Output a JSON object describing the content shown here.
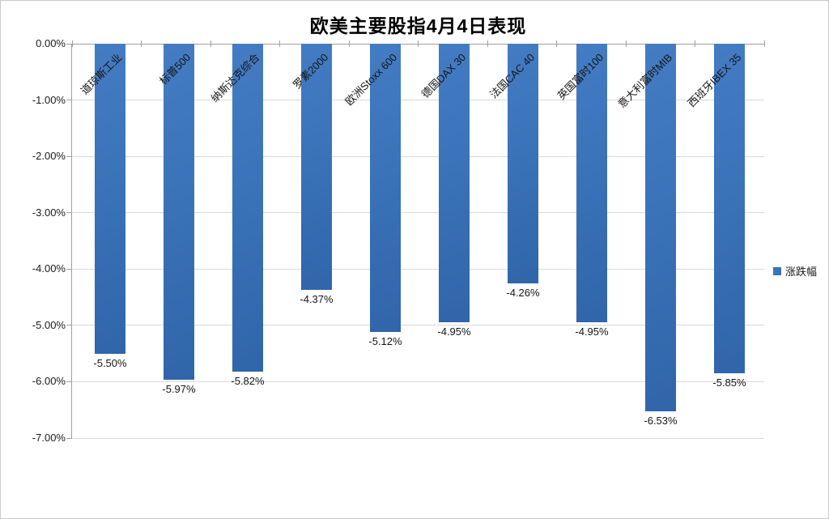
{
  "window": {
    "background": "#ffffff",
    "border_color": "#c9c9c9"
  },
  "chart_data": {
    "type": "bar",
    "title": "欧美主要股指4月4日表现",
    "categories": [
      "道琼斯工业",
      "标普500",
      "纳斯达克综合",
      "罗素2000",
      "欧洲Stoxx 600",
      "德国DAX 30",
      "法国CAC 40",
      "英国富时100",
      "意大利富时MIB",
      "西班牙IBEX 35"
    ],
    "series": [
      {
        "name": "涨跌幅",
        "values": [
          -5.5,
          -5.97,
          -5.82,
          -4.37,
          -5.12,
          -4.95,
          -4.26,
          -4.95,
          -6.53,
          -5.85
        ]
      }
    ],
    "data_labels": [
      "-5.50%",
      "-5.97%",
      "-5.82%",
      "-4.37%",
      "-5.12%",
      "-4.95%",
      "-4.26%",
      "-4.95%",
      "-6.53%",
      "-5.85%"
    ],
    "y_ticks": [
      "0.00%",
      "-1.00%",
      "-2.00%",
      "-3.00%",
      "-4.00%",
      "-5.00%",
      "-6.00%",
      "-7.00%"
    ],
    "xlabel": "",
    "ylabel": "",
    "ylim": [
      -7,
      0
    ],
    "grid": true,
    "category_label_rotation_deg": 45,
    "legend": {
      "position": "right",
      "entries": [
        {
          "label": "涨跌幅",
          "color": "#3a73b8"
        }
      ]
    }
  },
  "colors": {
    "bar": "#3a73b8",
    "bar_gradient_light": "#447cc4",
    "bar_gradient_dark": "#3065a9",
    "gridline": "#d9d9d9",
    "axis": "#a0a0a0",
    "text": "#141414"
  }
}
